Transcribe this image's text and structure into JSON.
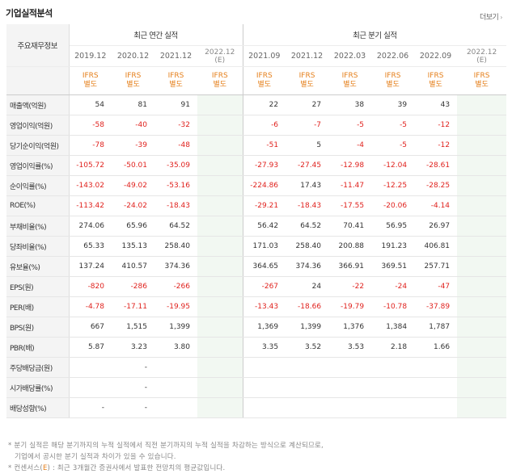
{
  "header": {
    "title": "기업실적분석",
    "more_label": "더보기",
    "more_arrow": "›"
  },
  "table": {
    "label_header": "주요재무정보",
    "annual_group": "최근 연간 실적",
    "quarter_group": "최근 분기 실적",
    "periods": [
      {
        "label": "2019.12",
        "est": ""
      },
      {
        "label": "2020.12",
        "est": ""
      },
      {
        "label": "2021.12",
        "est": ""
      },
      {
        "label": "2022.12",
        "est": "(E)"
      },
      {
        "label": "2021.09",
        "est": ""
      },
      {
        "label": "2021.12",
        "est": ""
      },
      {
        "label": "2022.03",
        "est": ""
      },
      {
        "label": "2022.06",
        "est": ""
      },
      {
        "label": "2022.09",
        "est": ""
      },
      {
        "label": "2022.12",
        "est": "(E)"
      }
    ],
    "basis": {
      "line1": "IFRS",
      "line2": "별도"
    },
    "rows": [
      {
        "label": "매출액(억원)",
        "values": [
          "54",
          "81",
          "91",
          "",
          "22",
          "27",
          "38",
          "39",
          "43",
          ""
        ]
      },
      {
        "label": "영업이익(억원)",
        "values": [
          "-58",
          "-40",
          "-32",
          "",
          "-6",
          "-7",
          "-5",
          "-5",
          "-12",
          ""
        ]
      },
      {
        "label": "당기순이익(억원)",
        "values": [
          "-78",
          "-39",
          "-48",
          "",
          "-51",
          "5",
          "-4",
          "-5",
          "-12",
          ""
        ]
      },
      {
        "label": "영업이익률(%)",
        "values": [
          "-105.72",
          "-50.01",
          "-35.09",
          "",
          "-27.93",
          "-27.45",
          "-12.98",
          "-12.04",
          "-28.61",
          ""
        ]
      },
      {
        "label": "순이익률(%)",
        "values": [
          "-143.02",
          "-49.02",
          "-53.16",
          "",
          "-224.86",
          "17.43",
          "-11.47",
          "-12.25",
          "-28.25",
          ""
        ]
      },
      {
        "label": "ROE(%)",
        "values": [
          "-113.42",
          "-24.02",
          "-18.43",
          "",
          "-29.21",
          "-18.43",
          "-17.55",
          "-20.06",
          "-4.14",
          ""
        ]
      },
      {
        "label": "부채비율(%)",
        "values": [
          "274.06",
          "65.96",
          "64.52",
          "",
          "56.42",
          "64.52",
          "70.41",
          "56.95",
          "26.97",
          ""
        ]
      },
      {
        "label": "당좌비율(%)",
        "values": [
          "65.33",
          "135.13",
          "258.40",
          "",
          "171.03",
          "258.40",
          "200.88",
          "191.23",
          "406.81",
          ""
        ]
      },
      {
        "label": "유보율(%)",
        "values": [
          "137.24",
          "410.57",
          "374.36",
          "",
          "364.65",
          "374.36",
          "366.91",
          "369.51",
          "257.71",
          ""
        ]
      },
      {
        "label": "EPS(원)",
        "values": [
          "-820",
          "-286",
          "-266",
          "",
          "-267",
          "24",
          "-22",
          "-24",
          "-47",
          ""
        ]
      },
      {
        "label": "PER(배)",
        "values": [
          "-4.78",
          "-17.11",
          "-19.95",
          "",
          "-13.43",
          "-18.66",
          "-19.79",
          "-10.78",
          "-37.89",
          ""
        ]
      },
      {
        "label": "BPS(원)",
        "values": [
          "667",
          "1,515",
          "1,399",
          "",
          "1,369",
          "1,399",
          "1,376",
          "1,384",
          "1,787",
          ""
        ]
      },
      {
        "label": "PBR(배)",
        "values": [
          "5.87",
          "3.23",
          "3.80",
          "",
          "3.35",
          "3.52",
          "3.53",
          "2.18",
          "1.66",
          ""
        ]
      },
      {
        "label": "주당배당금(원)",
        "values": [
          "",
          "-",
          "",
          "",
          "",
          "",
          "",
          "",
          "",
          ""
        ]
      },
      {
        "label": "시가배당률(%)",
        "values": [
          "",
          "-",
          "",
          "",
          "",
          "",
          "",
          "",
          "",
          ""
        ]
      },
      {
        "label": "배당성향(%)",
        "values": [
          "-",
          "-",
          "",
          "",
          "",
          "",
          "",
          "",
          "",
          ""
        ]
      }
    ]
  },
  "notes": {
    "line1": "* 분기 실적은 해당 분기까지의 누적 실적에서 직전 분기까지의 누적 실적을 차감하는 방식으로 계산되므로,",
    "line2": "기업에서 공시한 분기 실적과 차이가 있을 수 있습니다.",
    "line3_a": "* 컨센서스(",
    "line3_e": "E",
    "line3_b": ") : 최근 3개월간 증권사에서 발표한 전망치의 평균값입니다."
  }
}
